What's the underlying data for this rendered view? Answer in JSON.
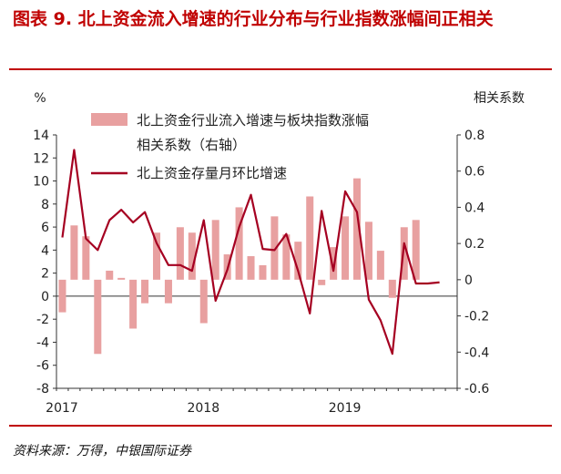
{
  "title": "图表 9. 北上资金流入增速的行业分布与行业指数涨幅间正相关",
  "source": "资料来源：万得，中银国际证券",
  "chart_data": {
    "type": "bar+line",
    "left_unit": "%",
    "right_unit": "相关系数",
    "y_left_ticks": [
      "14",
      "12",
      "10",
      "8",
      "6",
      "4",
      "2",
      "0",
      "-2",
      "-4",
      "-6",
      "-8"
    ],
    "y_right_ticks": [
      "0.8",
      "0.6",
      "0.4",
      "0.2",
      "0",
      "-0.2",
      "-0.4",
      "-0.6"
    ],
    "y_left_range": [
      -8,
      14
    ],
    "y_right_range": [
      -0.6,
      0.8
    ],
    "x_year_labels": [
      "2017",
      "2018",
      "2019"
    ],
    "year_start_index": [
      0,
      12,
      24
    ],
    "months": 34,
    "grid": false,
    "legend_position": "top-center",
    "series": [
      {
        "name": "北上资金行业流入增速与板块指数涨幅相关系数（右轴）",
        "legend_line1": "北上资金行业流入增速与板块指数涨幅",
        "legend_line2": "相关系数（右轴）",
        "type": "bar",
        "axis": "right",
        "color": "#e8a0a0",
        "values": [
          -0.18,
          0.3,
          0.24,
          -0.41,
          0.05,
          0.01,
          -0.27,
          -0.13,
          0.26,
          -0.13,
          0.29,
          0.26,
          -0.24,
          0.33,
          0.14,
          0.4,
          0.13,
          0.08,
          0.35,
          0.25,
          0.21,
          0.46,
          -0.03,
          0.18,
          0.35,
          0.56,
          0.32,
          0.16,
          -0.1,
          0.29,
          0.33
        ]
      },
      {
        "name": "北上资金存量月环比增速",
        "type": "line",
        "axis": "left",
        "color": "#a50021",
        "values": [
          5.1,
          12.7,
          5.0,
          4.0,
          6.6,
          7.5,
          6.4,
          7.3,
          4.6,
          2.7,
          2.7,
          2.2,
          6.6,
          -0.4,
          2.3,
          6.0,
          8.8,
          4.1,
          4.0,
          5.4,
          2.2,
          -1.5,
          7.4,
          2.2,
          9.1,
          7.3,
          -0.3,
          -2.1,
          -5.0,
          4.6,
          1.1,
          1.1,
          1.2
        ]
      }
    ]
  }
}
